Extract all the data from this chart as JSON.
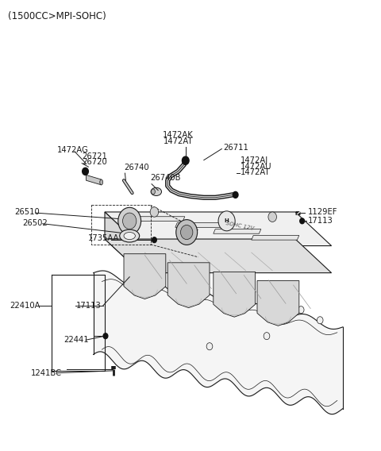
{
  "title": "(1500CC>MPI-SOHC)",
  "bg": "#ffffff",
  "dark": "#1a1a1a",
  "gray": "#888888",
  "lightgray": "#cccccc",
  "title_fs": 8.5,
  "label_fs": 7.2,
  "small_fs": 6.5,
  "labels": {
    "1472AK_1472AT": [
      0.485,
      0.695,
      "center",
      "1472AK\n1472AT"
    ],
    "26711": [
      0.595,
      0.672,
      "left",
      "26711"
    ],
    "1472AG": [
      0.175,
      0.672,
      "left",
      "1472AG"
    ],
    "26721_26720": [
      0.215,
      0.647,
      "left",
      "26721\n26720"
    ],
    "26740": [
      0.325,
      0.622,
      "left",
      "26740"
    ],
    "26740B": [
      0.385,
      0.597,
      "left",
      "26740B"
    ],
    "1472AJ_AU_AT": [
      0.635,
      0.63,
      "left",
      "1472AJ\n1472AU\n1472AT"
    ],
    "26510": [
      0.038,
      0.528,
      "left",
      "26510"
    ],
    "26502": [
      0.058,
      0.505,
      "left",
      "26502"
    ],
    "1735AA": [
      0.235,
      0.468,
      "left",
      "1735AA"
    ],
    "1129EF": [
      0.808,
      0.528,
      "left",
      "1129EF"
    ],
    "17113_r": [
      0.808,
      0.508,
      "left",
      "17113"
    ],
    "22410A": [
      0.025,
      0.32,
      "left",
      "22410A"
    ],
    "17113_l": [
      0.2,
      0.32,
      "left",
      "17113"
    ],
    "22441": [
      0.168,
      0.242,
      "left",
      "22441"
    ],
    "1241BC": [
      0.082,
      0.168,
      "left",
      "1241BC"
    ]
  }
}
